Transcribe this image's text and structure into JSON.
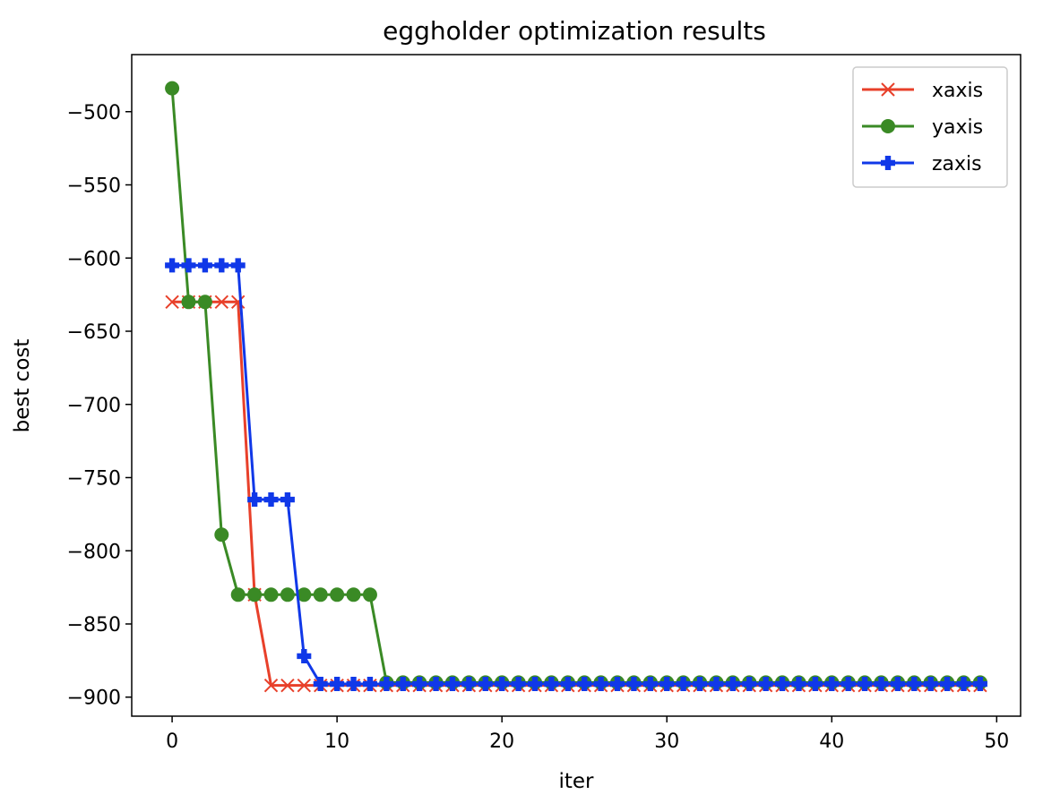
{
  "chart_data": {
    "type": "line",
    "title": "eggholder optimization results",
    "xlabel": "iter",
    "ylabel": "best cost",
    "xlim": [
      -2.45,
      51.45
    ],
    "ylim": [
      -913,
      -461
    ],
    "xticks": [
      0,
      10,
      20,
      30,
      40,
      50
    ],
    "yticks": [
      -500,
      -550,
      -600,
      -650,
      -700,
      -750,
      -800,
      -850,
      -900
    ],
    "xtick_labels": [
      "0",
      "10",
      "20",
      "30",
      "40",
      "50"
    ],
    "ytick_labels": [
      "−500",
      "−550",
      "−600",
      "−650",
      "−700",
      "−750",
      "−800",
      "−850",
      "−900"
    ],
    "grid": false,
    "legend_position": "top-right",
    "x": [
      0,
      1,
      2,
      3,
      4,
      5,
      6,
      7,
      8,
      9,
      10,
      11,
      12,
      13,
      14,
      15,
      16,
      17,
      18,
      19,
      20,
      21,
      22,
      23,
      24,
      25,
      26,
      27,
      28,
      29,
      30,
      31,
      32,
      33,
      34,
      35,
      36,
      37,
      38,
      39,
      40,
      41,
      42,
      43,
      44,
      45,
      46,
      47,
      48,
      49
    ],
    "series": [
      {
        "name": "xaxis",
        "color": "#e8402a",
        "marker": "x",
        "values": [
          -630,
          -630,
          -630,
          -630,
          -630,
          -830,
          -892,
          -892,
          -892,
          -892,
          -892,
          -892,
          -892,
          -892,
          -892,
          -892,
          -892,
          -892,
          -892,
          -892,
          -892,
          -892,
          -892,
          -892,
          -892,
          -892,
          -892,
          -892,
          -892,
          -892,
          -892,
          -892,
          -892,
          -892,
          -892,
          -892,
          -892,
          -892,
          -892,
          -892,
          -892,
          -892,
          -892,
          -892,
          -892,
          -892,
          -892,
          -892,
          -892,
          -892
        ]
      },
      {
        "name": "yaxis",
        "color": "#3a8a25",
        "marker": "circle",
        "values": [
          -484,
          -630,
          -630,
          -789,
          -830,
          -830,
          -830,
          -830,
          -830,
          -830,
          -830,
          -830,
          -830,
          -890,
          -890,
          -890,
          -890,
          -890,
          -890,
          -890,
          -890,
          -890,
          -890,
          -890,
          -890,
          -890,
          -890,
          -890,
          -890,
          -890,
          -890,
          -890,
          -890,
          -890,
          -890,
          -890,
          -890,
          -890,
          -890,
          -890,
          -890,
          -890,
          -890,
          -890,
          -890,
          -890,
          -890,
          -890,
          -890,
          -890
        ]
      },
      {
        "name": "zaxis",
        "color": "#1038e8",
        "marker": "plus",
        "values": [
          -605,
          -605,
          -605,
          -605,
          -605,
          -765,
          -765,
          -765,
          -872,
          -891,
          -891,
          -891,
          -891,
          -891,
          -891,
          -891,
          -891,
          -891,
          -891,
          -891,
          -891,
          -891,
          -891,
          -891,
          -891,
          -891,
          -891,
          -891,
          -891,
          -891,
          -891,
          -891,
          -891,
          -891,
          -891,
          -891,
          -891,
          -891,
          -891,
          -891,
          -891,
          -891,
          -891,
          -891,
          -891,
          -891,
          -891,
          -891,
          -891,
          -891
        ]
      }
    ]
  }
}
